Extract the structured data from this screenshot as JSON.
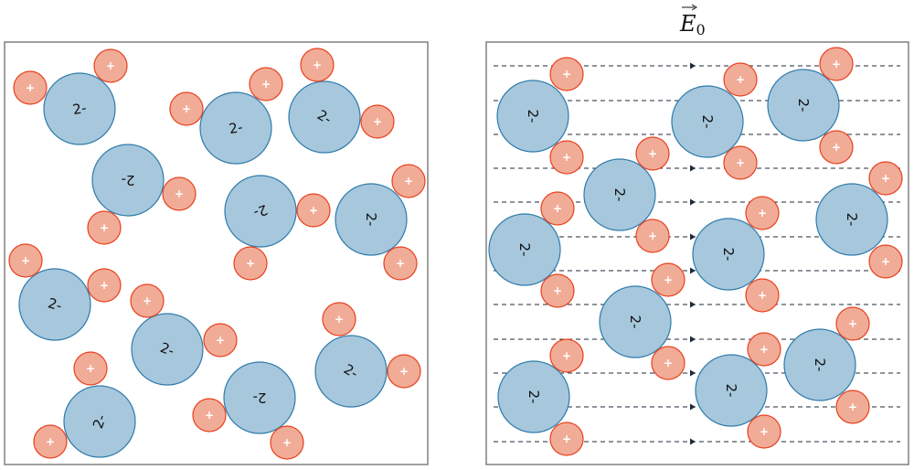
{
  "diagram": {
    "left_panel": {
      "field_applied": false
    },
    "right_panel": {
      "field_applied": true,
      "field_label": "E",
      "field_subscript": "0"
    },
    "anion_label": "2-",
    "cation_label": "+",
    "colors": {
      "anion_fill": "#a7c7dc",
      "anion_stroke": "#2e7bab",
      "cation_fill": "#f1ac98",
      "cation_stroke": "#e8411d",
      "field_line": "#1c2a3a",
      "frame": "#808080"
    }
  }
}
